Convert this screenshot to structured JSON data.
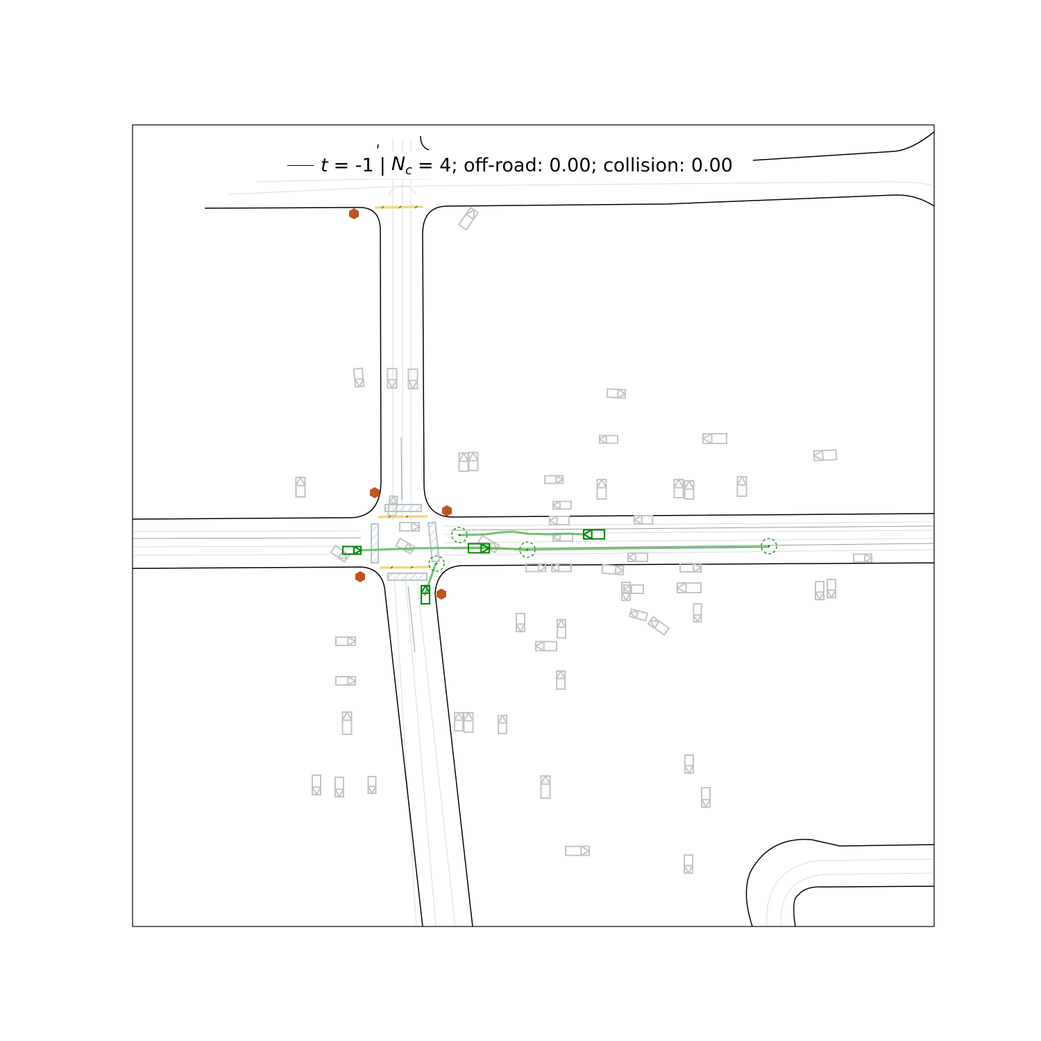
{
  "title": {
    "t_symbol": "t",
    "t_value": "= -1",
    "separator": "|",
    "nc_symbol": "N",
    "nc_subscript": "c",
    "rest": "= 4; off-road: 0.00; collision: 0.00"
  },
  "colors": {
    "road_edge": "#000000",
    "lane_line": "#d9d9d9",
    "lane_divider": "#999999",
    "crosswalk": "#f5d77a",
    "stop_sign": "#c1541f",
    "other_agent": "#c4c4c4",
    "controlled_agent": "#0a8a0a",
    "trajectory": "#5cb85c",
    "goal_marker": "#0a8a0a",
    "parked_cluster": "#b3c3cc"
  },
  "legend": {
    "line_style": "solid black"
  },
  "map_features": {
    "stop_signs": 6,
    "crosswalks": 4,
    "controlled_agents": 4,
    "goal_markers": 4
  }
}
